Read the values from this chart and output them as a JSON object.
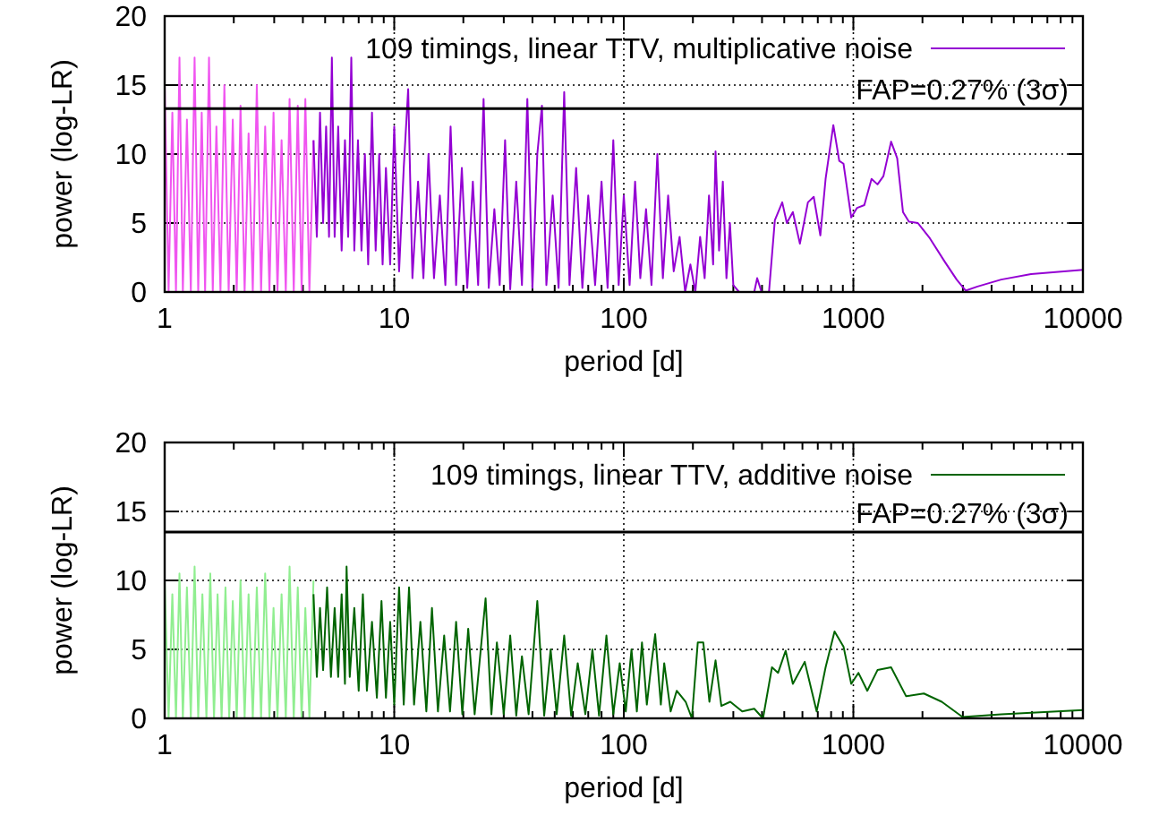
{
  "chart_data": [
    {
      "type": "line",
      "xlabel": "period [d]",
      "ylabel": "power (log-LR)",
      "log": "x",
      "grid": true,
      "legend": "top right",
      "xlim": [
        1,
        10000
      ],
      "ylim": [
        0,
        20
      ],
      "xticks": [
        1,
        {
          "value": 2,
          "label": null
        },
        {
          "value": 3,
          "label": null
        },
        {
          "value": 4,
          "label": null
        },
        {
          "value": 5,
          "label": null
        },
        {
          "value": 6,
          "label": null
        },
        {
          "value": 7,
          "label": null
        },
        {
          "value": 8,
          "label": null
        },
        {
          "value": 9,
          "label": null
        },
        10,
        {
          "value": 20,
          "label": null
        },
        {
          "value": 30,
          "label": null
        },
        {
          "value": 40,
          "label": null
        },
        {
          "value": 50,
          "label": null
        },
        {
          "value": 60,
          "label": null
        },
        {
          "value": 70,
          "label": null
        },
        {
          "value": 80,
          "label": null
        },
        {
          "value": 90,
          "label": null
        },
        100,
        {
          "value": 200,
          "label": null
        },
        {
          "value": 300,
          "label": null
        },
        {
          "value": 400,
          "label": null
        },
        {
          "value": 500,
          "label": null
        },
        {
          "value": 600,
          "label": null
        },
        {
          "value": 700,
          "label": null
        },
        {
          "value": 800,
          "label": null
        },
        {
          "value": 900,
          "label": null
        },
        1000,
        {
          "value": 2000,
          "label": null
        },
        {
          "value": 3000,
          "label": null
        },
        {
          "value": 4000,
          "label": null
        },
        {
          "value": 5000,
          "label": null
        },
        {
          "value": 6000,
          "label": null
        },
        {
          "value": 7000,
          "label": null
        },
        {
          "value": 8000,
          "label": null
        },
        {
          "value": 9000,
          "label": null
        },
        10000
      ],
      "yticks": [
        0,
        5,
        10,
        15,
        20
      ],
      "ref_lines": [
        {
          "axis": "y",
          "value": 13.3,
          "color": "#000000",
          "line_style": "solid"
        }
      ],
      "annotations": [
        "FAP=0.27% (3σ)"
      ],
      "series": [
        {
          "color": "#f055f0",
          "x": [
            1,
            1.04,
            1.08,
            1.12,
            1.16,
            1.2,
            1.25,
            1.3,
            1.35,
            1.4,
            1.45,
            1.5,
            1.56,
            1.62,
            1.68,
            1.75,
            1.82,
            1.9,
            1.98,
            2.06,
            2.14,
            2.23,
            2.32,
            2.42,
            2.52,
            2.63,
            2.74,
            2.86,
            2.98,
            3.1,
            3.23,
            3.37,
            3.5,
            3.65,
            3.8,
            3.95,
            4.1,
            4.27,
            4.45
          ],
          "values": [
            15,
            0,
            13,
            0,
            17,
            0,
            12.5,
            0,
            17,
            0,
            13,
            0,
            17,
            0,
            12,
            0,
            15,
            0,
            12.5,
            0,
            13.5,
            0,
            11.5,
            0,
            15,
            0,
            12,
            0,
            13,
            0,
            11,
            0,
            14,
            0,
            13.5,
            0,
            14,
            0,
            11
          ]
        },
        {
          "name": "109 timings, linear TTV, multiplicative noise",
          "color": "#9400d3",
          "x": [
            4.45,
            4.6,
            4.75,
            4.9,
            5.05,
            5.2,
            5.35,
            5.5,
            5.7,
            5.9,
            6.1,
            6.3,
            6.5,
            6.7,
            6.95,
            7.2,
            7.45,
            7.7,
            8,
            8.3,
            8.6,
            8.9,
            9.2,
            9.6,
            10,
            10.5,
            11,
            11.5,
            12,
            12.7,
            13.4,
            14.1,
            14.9,
            15.8,
            16.7,
            17.6,
            18.6,
            19.7,
            20.8,
            22,
            23.2,
            24.5,
            25.8,
            27.3,
            28.8,
            30.4,
            32,
            34,
            36,
            38,
            40,
            42,
            44,
            46,
            49,
            52,
            55,
            58,
            62,
            66,
            70,
            75,
            80,
            85,
            90,
            95,
            100,
            106,
            112,
            118,
            125,
            132,
            140,
            148,
            156,
            165,
            175,
            185,
            195,
            205,
            215,
            225,
            235,
            245,
            251,
            260,
            270,
            280,
            290,
            300,
            318,
            370,
            381,
            398,
            429,
            455,
            490,
            513,
            545,
            585,
            634,
            672,
            718,
            757,
            818,
            868,
            906,
            979,
            1038,
            1116,
            1200,
            1274,
            1352,
            1460,
            1552,
            1645,
            1746,
            1910,
            2153,
            2500,
            2818,
            3083,
            3475,
            4406,
            5943,
            10000
          ],
          "values": [
            11,
            4,
            13,
            5,
            12,
            4,
            17,
            4,
            12,
            3,
            11,
            4,
            17,
            3,
            11,
            3,
            10,
            2,
            13,
            3,
            10,
            2,
            9,
            2,
            12,
            1.5,
            9,
            14.7,
            1,
            8,
            1,
            10,
            1,
            7,
            0.5,
            12,
            0.5,
            9,
            0.3,
            8,
            0.5,
            14,
            0.3,
            6,
            0.5,
            11,
            0.2,
            8,
            0.5,
            14,
            0.3,
            10,
            13.5,
            0.5,
            7,
            0.3,
            14.5,
            0.5,
            9,
            0.3,
            7,
            0.5,
            8,
            0.3,
            11,
            0.5,
            7,
            0.5,
            8,
            1,
            6,
            0.5,
            10,
            1,
            7,
            1.5,
            4,
            0,
            2,
            0,
            4,
            1,
            7,
            2,
            10.2,
            3,
            8,
            1,
            5,
            0.5,
            0,
            0,
            1,
            0,
            0,
            5.2,
            6.5,
            5,
            5.8,
            3.5,
            6.5,
            6.9,
            4.1,
            8.2,
            12.1,
            9.5,
            9.3,
            5.4,
            6.1,
            6.3,
            8.2,
            7.8,
            8.4,
            10.9,
            9.7,
            5.8,
            5.1,
            5,
            3.9,
            2.2,
            0.9,
            0.1,
            0.4,
            0.9,
            1.3,
            1.6
          ]
        }
      ]
    },
    {
      "type": "line",
      "xlabel": "period [d]",
      "ylabel": "power (log-LR)",
      "log": "x",
      "grid": true,
      "legend": "top right",
      "xlim": [
        1,
        10000
      ],
      "ylim": [
        0,
        20
      ],
      "xticks": [
        1,
        {
          "value": 2,
          "label": null
        },
        {
          "value": 3,
          "label": null
        },
        {
          "value": 4,
          "label": null
        },
        {
          "value": 5,
          "label": null
        },
        {
          "value": 6,
          "label": null
        },
        {
          "value": 7,
          "label": null
        },
        {
          "value": 8,
          "label": null
        },
        {
          "value": 9,
          "label": null
        },
        10,
        {
          "value": 20,
          "label": null
        },
        {
          "value": 30,
          "label": null
        },
        {
          "value": 40,
          "label": null
        },
        {
          "value": 50,
          "label": null
        },
        {
          "value": 60,
          "label": null
        },
        {
          "value": 70,
          "label": null
        },
        {
          "value": 80,
          "label": null
        },
        {
          "value": 90,
          "label": null
        },
        100,
        {
          "value": 200,
          "label": null
        },
        {
          "value": 300,
          "label": null
        },
        {
          "value": 400,
          "label": null
        },
        {
          "value": 500,
          "label": null
        },
        {
          "value": 600,
          "label": null
        },
        {
          "value": 700,
          "label": null
        },
        {
          "value": 800,
          "label": null
        },
        {
          "value": 900,
          "label": null
        },
        1000,
        {
          "value": 2000,
          "label": null
        },
        {
          "value": 3000,
          "label": null
        },
        {
          "value": 4000,
          "label": null
        },
        {
          "value": 5000,
          "label": null
        },
        {
          "value": 6000,
          "label": null
        },
        {
          "value": 7000,
          "label": null
        },
        {
          "value": 8000,
          "label": null
        },
        {
          "value": 9000,
          "label": null
        },
        10000
      ],
      "yticks": [
        0,
        5,
        10,
        15,
        20
      ],
      "ref_lines": [
        {
          "axis": "y",
          "value": 13.5,
          "color": "#000000",
          "line_style": "solid"
        }
      ],
      "annotations": [
        "FAP=0.27% (3σ)"
      ],
      "series": [
        {
          "color": "#90ee90",
          "x": [
            1,
            1.04,
            1.08,
            1.12,
            1.16,
            1.2,
            1.25,
            1.3,
            1.35,
            1.4,
            1.46,
            1.52,
            1.58,
            1.64,
            1.7,
            1.77,
            1.84,
            1.91,
            1.98,
            2.06,
            2.14,
            2.23,
            2.32,
            2.42,
            2.52,
            2.63,
            2.74,
            2.86,
            2.98,
            3.1,
            3.23,
            3.37,
            3.5,
            3.65,
            3.8,
            3.95,
            4.1,
            4.27,
            4.45
          ],
          "values": [
            10,
            0,
            9,
            0,
            10.5,
            0,
            9.5,
            0,
            11,
            0,
            9,
            0,
            10.5,
            0,
            9,
            0,
            9.5,
            0,
            8.5,
            0,
            10,
            0,
            9,
            0,
            9.5,
            0,
            10.5,
            0,
            8,
            0,
            9,
            0,
            11,
            0,
            9.5,
            0,
            8,
            0,
            10
          ]
        },
        {
          "name": "109 timings, linear TTV, additive noise",
          "color": "#006400",
          "x": [
            4.45,
            4.6,
            4.75,
            4.9,
            5.1,
            5.3,
            5.5,
            5.7,
            5.9,
            6.1,
            6.2,
            6.4,
            6.7,
            7,
            7.3,
            7.6,
            8,
            8.4,
            8.8,
            9.2,
            9.6,
            10,
            10.5,
            11,
            11.6,
            12.2,
            13,
            13.8,
            14.6,
            15.5,
            16.5,
            17.5,
            18.6,
            19.8,
            21,
            22.4,
            25,
            26.5,
            28,
            30,
            32,
            34,
            36,
            38.5,
            42,
            45,
            48,
            51,
            55,
            59,
            63,
            68,
            73,
            78,
            84,
            90,
            96,
            102,
            108,
            114,
            120,
            126,
            132,
            137,
            145,
            150,
            160,
            170,
            186,
            198,
            210,
            222,
            236,
            251,
            266,
            291,
            328,
            370,
            404,
            442,
            470,
            507,
            545,
            614,
            692,
            757,
            828,
            906,
            979,
            1052,
            1150,
            1274,
            1460,
            1698,
            2028,
            2427,
            2990,
            4406,
            10000
          ],
          "values": [
            9,
            3,
            8,
            3.5,
            9.5,
            3,
            8,
            3,
            9,
            2.5,
            11,
            3,
            8,
            2,
            9,
            2,
            7,
            1.5,
            8.5,
            1.5,
            7,
            1,
            9.5,
            1,
            9.5,
            1,
            7,
            0.5,
            8,
            0.5,
            6,
            0.5,
            7,
            0.3,
            6.5,
            0.3,
            8.7,
            0.3,
            5.5,
            0.3,
            6,
            0.2,
            4.5,
            0.3,
            8.5,
            0.2,
            5,
            0.3,
            6,
            0.2,
            4,
            0.3,
            5,
            0.2,
            6,
            0.3,
            4,
            0.5,
            5,
            0.5,
            5.5,
            1,
            4,
            6.1,
            1,
            4,
            0.5,
            2,
            1.2,
            0,
            5.5,
            5.5,
            1.2,
            4.2,
            0.9,
            1.2,
            0.5,
            0.7,
            0,
            3.7,
            3.3,
            4.9,
            2.5,
            4.1,
            0.5,
            3.7,
            6.3,
            5.2,
            2.5,
            3.3,
            2,
            3.5,
            3.7,
            1.6,
            1.8,
            1.2,
            0.1,
            0.3,
            0.6
          ]
        }
      ]
    }
  ]
}
